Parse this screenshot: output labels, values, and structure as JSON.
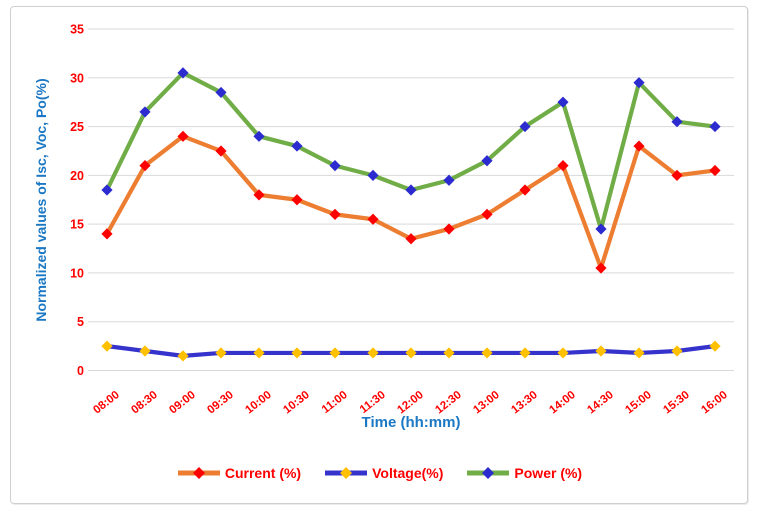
{
  "chart_data": {
    "type": "line",
    "title": "",
    "xlabel": "Time (hh:mm)",
    "ylabel": "Normalized values of Isc, Voc, Po(%)",
    "ylim": [
      0,
      35
    ],
    "ytick_step": 5,
    "grid": "horizontal-only",
    "legend_position": "bottom",
    "categories": [
      "08:00",
      "08:30",
      "09:00",
      "09:30",
      "10:00",
      "10:30",
      "11:00",
      "11:30",
      "12:00",
      "12:30",
      "13:00",
      "13:30",
      "14:00",
      "14:30",
      "15:00",
      "15:30",
      "16:00"
    ],
    "series": [
      {
        "name": "Current (%)",
        "marker": "diamond",
        "line_color": "#ED7D31",
        "marker_color": "#FE0000",
        "values": [
          14,
          21,
          24,
          22.5,
          18,
          17.5,
          16,
          15.5,
          13.5,
          14.5,
          16,
          18.5,
          21,
          10.5,
          23,
          20,
          20.5
        ]
      },
      {
        "name": "Voltage(%)",
        "marker": "diamond",
        "line_color": "#3533CC",
        "marker_color": "#FFC000",
        "values": [
          2.5,
          2,
          1.5,
          1.8,
          1.8,
          1.8,
          1.8,
          1.8,
          1.8,
          1.8,
          1.8,
          1.8,
          1.8,
          2,
          1.8,
          2,
          2.5
        ]
      },
      {
        "name": "Power (%)",
        "marker": "diamond",
        "line_color": "#70AD47",
        "marker_color": "#2B2BD0",
        "values": [
          18.5,
          26.5,
          30.5,
          28.5,
          24,
          23,
          21,
          20,
          18.5,
          19.5,
          21.5,
          25,
          27.5,
          14.5,
          29.5,
          25.5,
          25
        ]
      }
    ]
  },
  "colors": {
    "tick_label": "#FF0000",
    "axis_title": "#1B78C4",
    "gridline": "#D9D9D9",
    "frame_border": "#CFCFCF",
    "background": "#FFFFFF",
    "legend_label": "#FF0000"
  }
}
